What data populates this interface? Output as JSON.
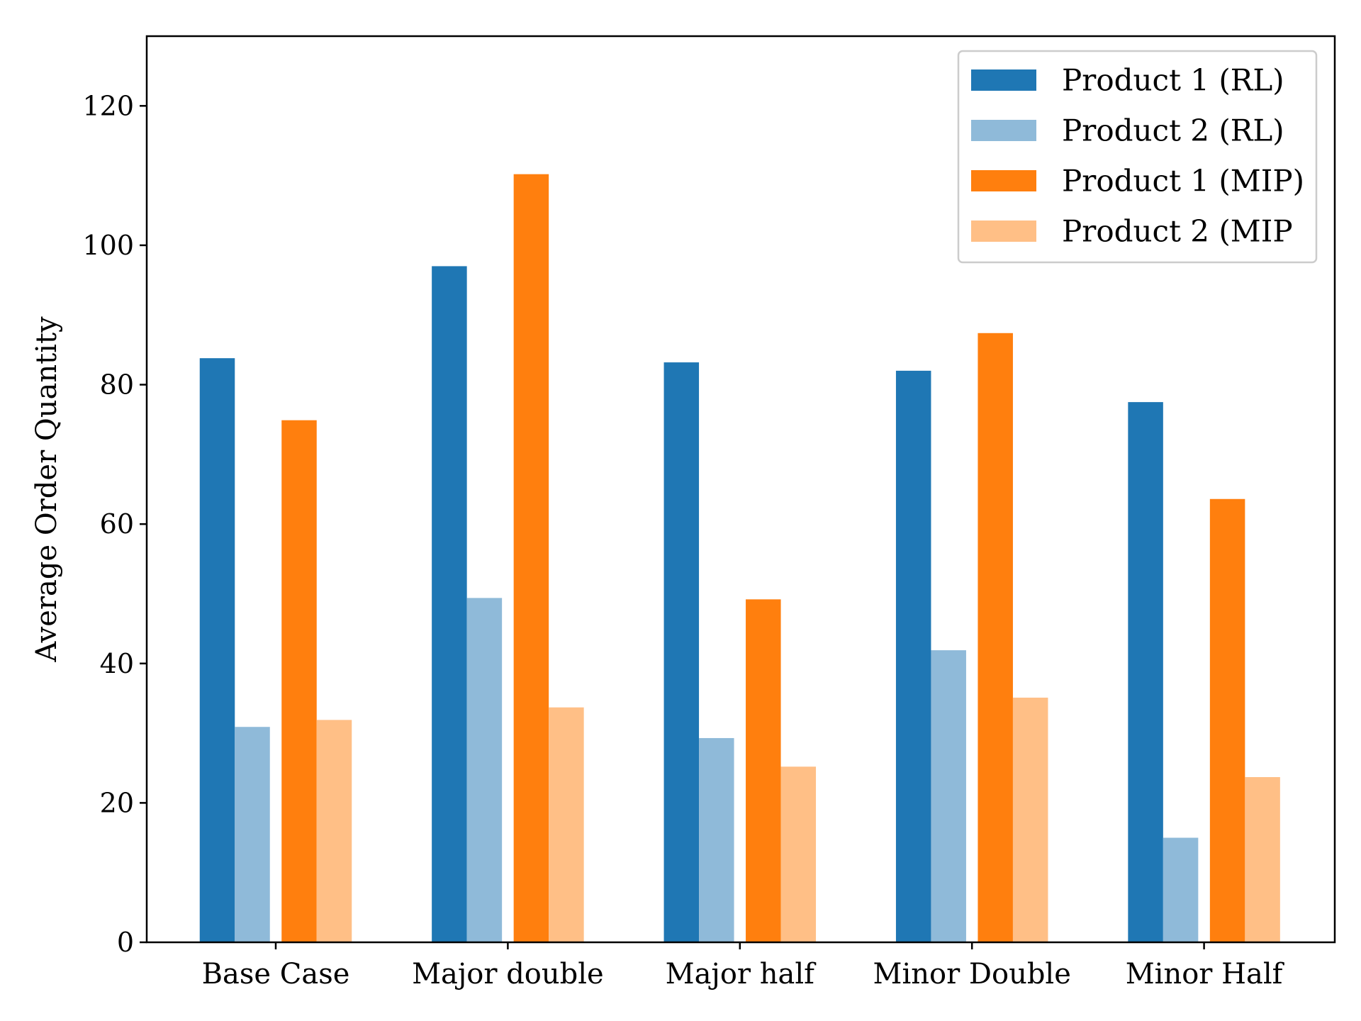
{
  "chart_data": {
    "type": "bar",
    "title": "",
    "xlabel": "",
    "ylabel": "Average Order Quantity",
    "ylim": [
      0,
      130
    ],
    "yticks": [
      0,
      20,
      40,
      60,
      80,
      100,
      120
    ],
    "grid": false,
    "legend_position": "top-right",
    "categories": [
      "Base Case",
      "Major double",
      "Major half",
      "Minor Double",
      "Minor Half"
    ],
    "series": [
      {
        "name": "Product 1 (RL)",
        "color": "#1f77b4",
        "values": [
          83.8,
          97.0,
          83.2,
          82.0,
          77.5
        ]
      },
      {
        "name": "Product 2 (RL)",
        "color": "#8fbad9",
        "values": [
          30.9,
          49.4,
          29.3,
          41.9,
          15.0
        ]
      },
      {
        "name": "Product 1 (MIP)",
        "color": "#ff7f0e",
        "values": [
          74.9,
          110.2,
          49.2,
          87.4,
          63.6
        ]
      },
      {
        "name": "Product 2 (MIP",
        "color": "#ffbf86",
        "values": [
          31.9,
          33.7,
          25.2,
          35.1,
          23.7
        ]
      }
    ]
  }
}
